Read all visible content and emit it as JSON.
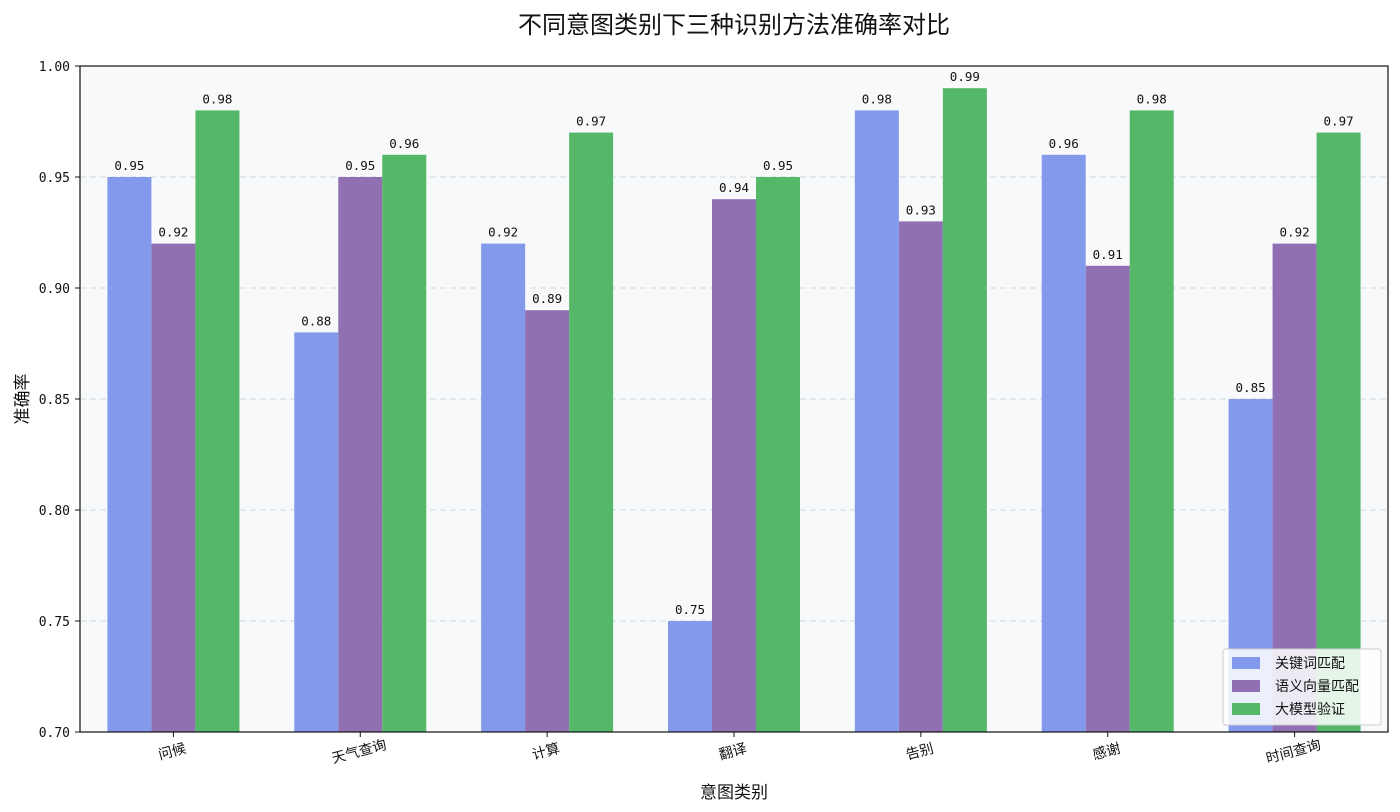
{
  "chart_data": {
    "type": "bar",
    "title": "不同意图类别下三种识别方法准确率对比",
    "xlabel": "意图类别",
    "ylabel": "准确率",
    "categories": [
      "问候",
      "天气查询",
      "计算",
      "翻译",
      "告别",
      "感谢",
      "时间查询"
    ],
    "series": [
      {
        "name": "关键词匹配",
        "color": "#8399ec",
        "values": [
          0.95,
          0.88,
          0.92,
          0.75,
          0.98,
          0.96,
          0.85
        ]
      },
      {
        "name": "语义向量匹配",
        "color": "#9070b3",
        "values": [
          0.92,
          0.95,
          0.89,
          0.94,
          0.93,
          0.91,
          0.92
        ]
      },
      {
        "name": "大模型验证",
        "color": "#55b868",
        "values": [
          0.98,
          0.96,
          0.97,
          0.95,
          0.99,
          0.98,
          0.97
        ]
      }
    ],
    "ylim": [
      0.7,
      1.0
    ],
    "yticks": [
      "0.70",
      "0.75",
      "0.80",
      "0.85",
      "0.90",
      "0.95",
      "1.00"
    ],
    "data_labels": [
      [
        "0.95",
        "0.88",
        "0.92",
        "0.75",
        "0.98",
        "0.96",
        "0.85"
      ],
      [
        "0.92",
        "0.95",
        "0.89",
        "0.94",
        "0.93",
        "0.91",
        "0.92"
      ],
      [
        "0.98",
        "0.96",
        "0.97",
        "0.95",
        "0.99",
        "0.98",
        "0.97"
      ]
    ],
    "grid": "y-dashed",
    "legend_position": "bottom-right",
    "plot_background": "#f7f9fb"
  }
}
